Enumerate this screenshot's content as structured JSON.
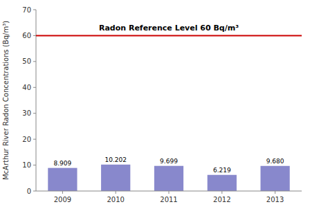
{
  "chart_data": {
    "type": "bar",
    "ylabel": "McArthur River Radon Concentrations (Bq/m³)",
    "categories": [
      "2009",
      "2010",
      "2011",
      "2012",
      "2013"
    ],
    "values": [
      8.909,
      10.202,
      9.699,
      6.219,
      9.68
    ],
    "value_labels": [
      "8.909",
      "10.202",
      "9.699",
      "6.219",
      "9.680"
    ],
    "data_labels": true,
    "color": "#8888CC",
    "ylim": [
      0,
      70
    ],
    "yticks": [
      0,
      10,
      20,
      30,
      40,
      50,
      60,
      70
    ],
    "grid": false,
    "annotations": [
      {
        "text": "Radon Reference Level 60 Bq/m³",
        "y": 60,
        "color": "#CC0000"
      }
    ]
  }
}
